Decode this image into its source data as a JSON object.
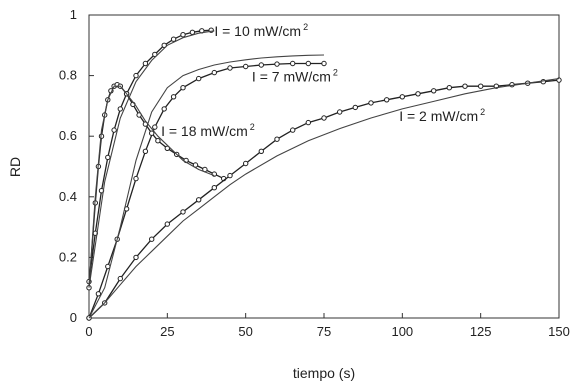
{
  "chart_data": {
    "type": "line",
    "xlabel": "tiempo (s)",
    "ylabel": "RD",
    "xlim": [
      0,
      150
    ],
    "ylim": [
      0,
      1
    ],
    "xticks": [
      0,
      25,
      50,
      75,
      100,
      125,
      150
    ],
    "yticks": [
      0,
      0.2,
      0.4,
      0.6,
      0.8,
      1
    ],
    "ytick_labels": [
      "0",
      "0.2",
      "0.4",
      "0.6",
      "0.8",
      "1"
    ],
    "grid": false,
    "annotations": [
      {
        "id": "ann-10",
        "base": "I = 10 mW/cm",
        "sup": "2",
        "x": 40,
        "y": 0.93
      },
      {
        "id": "ann-7",
        "base": "I = 7 mW/cm",
        "sup": "2",
        "x": 52,
        "y": 0.78
      },
      {
        "id": "ann-18",
        "base": "I = 18 mW/cm",
        "sup": "2",
        "x": 23,
        "y": 0.6
      },
      {
        "id": "ann-2",
        "base": "I = 2 mW/cm",
        "sup": "2",
        "x": 99,
        "y": 0.65
      }
    ],
    "series": [
      {
        "id": "i10-exp",
        "kind": "experimental",
        "x": [
          0,
          2,
          4,
          6,
          8,
          10,
          12,
          15,
          18,
          21,
          24,
          27,
          30,
          33,
          36,
          39
        ],
        "y": [
          0.12,
          0.28,
          0.42,
          0.53,
          0.62,
          0.69,
          0.74,
          0.8,
          0.84,
          0.87,
          0.9,
          0.92,
          0.935,
          0.943,
          0.948,
          0.95
        ]
      },
      {
        "id": "i10-model",
        "kind": "model",
        "x": [
          0,
          5,
          10,
          15,
          20,
          25,
          30,
          35,
          40
        ],
        "y": [
          0.1,
          0.45,
          0.66,
          0.78,
          0.85,
          0.9,
          0.925,
          0.94,
          0.948
        ]
      },
      {
        "id": "i7-exp",
        "kind": "experimental",
        "x": [
          0,
          3,
          6,
          9,
          12,
          15,
          18,
          21,
          24,
          27,
          30,
          35,
          40,
          45,
          50,
          55,
          60,
          65,
          70,
          75
        ],
        "y": [
          0,
          0.08,
          0.17,
          0.26,
          0.36,
          0.46,
          0.55,
          0.63,
          0.69,
          0.73,
          0.76,
          0.79,
          0.81,
          0.825,
          0.83,
          0.835,
          0.838,
          0.84,
          0.84,
          0.84
        ]
      },
      {
        "id": "i7-model",
        "kind": "model",
        "x": [
          0,
          5,
          10,
          15,
          20,
          25,
          30,
          35,
          40,
          45,
          50,
          55,
          60,
          65,
          70,
          75
        ],
        "y": [
          0,
          0.1,
          0.3,
          0.52,
          0.68,
          0.76,
          0.8,
          0.82,
          0.835,
          0.845,
          0.852,
          0.858,
          0.862,
          0.865,
          0.867,
          0.868
        ]
      },
      {
        "id": "i18-exp",
        "kind": "experimental",
        "x": [
          0,
          2,
          3,
          4,
          5,
          6,
          7,
          8,
          9,
          10,
          12,
          14,
          16,
          18,
          20,
          22,
          25,
          28,
          31,
          34,
          37,
          40,
          43
        ],
        "y": [
          0.1,
          0.38,
          0.5,
          0.6,
          0.67,
          0.72,
          0.75,
          0.765,
          0.77,
          0.765,
          0.74,
          0.705,
          0.67,
          0.64,
          0.61,
          0.585,
          0.56,
          0.54,
          0.52,
          0.505,
          0.49,
          0.475,
          0.46
        ]
      },
      {
        "id": "i18-model",
        "kind": "model",
        "x": [
          0,
          2,
          4,
          6,
          8,
          10,
          12,
          15,
          18,
          22,
          26,
          30,
          35,
          40
        ],
        "y": [
          0.1,
          0.4,
          0.62,
          0.72,
          0.765,
          0.765,
          0.74,
          0.7,
          0.65,
          0.6,
          0.56,
          0.52,
          0.49,
          0.47
        ]
      },
      {
        "id": "i2-exp",
        "kind": "experimental",
        "x": [
          0,
          5,
          10,
          15,
          20,
          25,
          30,
          35,
          40,
          45,
          50,
          55,
          60,
          65,
          70,
          75,
          80,
          85,
          90,
          95,
          100,
          105,
          110,
          115,
          120,
          125,
          130,
          135,
          140,
          145,
          150
        ],
        "y": [
          0,
          0.05,
          0.13,
          0.2,
          0.26,
          0.31,
          0.35,
          0.39,
          0.43,
          0.47,
          0.51,
          0.55,
          0.59,
          0.62,
          0.645,
          0.66,
          0.68,
          0.695,
          0.71,
          0.72,
          0.73,
          0.74,
          0.75,
          0.76,
          0.765,
          0.765,
          0.765,
          0.77,
          0.775,
          0.78,
          0.785
        ]
      },
      {
        "id": "i2-model",
        "kind": "model",
        "x": [
          0,
          5,
          10,
          15,
          20,
          25,
          30,
          35,
          40,
          45,
          50,
          60,
          70,
          80,
          90,
          100,
          110,
          120,
          130,
          140,
          150
        ],
        "y": [
          0,
          0.05,
          0.11,
          0.17,
          0.22,
          0.27,
          0.32,
          0.36,
          0.4,
          0.44,
          0.475,
          0.535,
          0.585,
          0.625,
          0.66,
          0.69,
          0.715,
          0.74,
          0.76,
          0.775,
          0.79
        ]
      }
    ]
  }
}
